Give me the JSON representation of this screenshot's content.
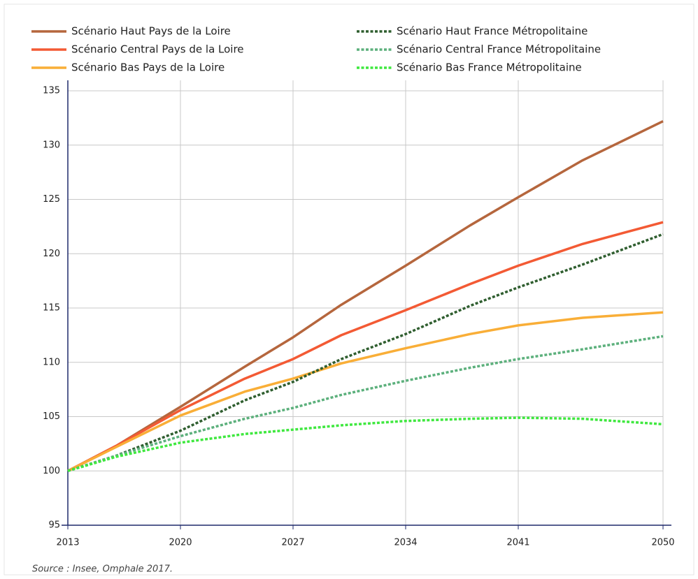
{
  "chart_data": {
    "type": "line",
    "source": "Source : Insee, Omphale 2017.",
    "x": [
      2013,
      2016,
      2020,
      2024,
      2027,
      2030,
      2034,
      2038,
      2041,
      2045,
      2050
    ],
    "series": [
      {
        "name": "Scénario Haut Pays de la Loire",
        "color": "#b5663d",
        "dash": "solid",
        "values": [
          100,
          102.3,
          105.9,
          109.6,
          112.3,
          115.3,
          118.9,
          122.6,
          125.2,
          128.6,
          132.2
        ]
      },
      {
        "name": "Scénario Central Pays de la Loire",
        "color": "#f35a34",
        "dash": "solid",
        "values": [
          100,
          102.3,
          105.6,
          108.5,
          110.3,
          112.5,
          114.8,
          117.2,
          118.9,
          120.9,
          122.9
        ]
      },
      {
        "name": "Scénario Bas Pays de la Loire",
        "color": "#f9ae37",
        "dash": "solid",
        "values": [
          100,
          102.2,
          105.1,
          107.3,
          108.5,
          109.9,
          111.3,
          112.6,
          113.4,
          114.1,
          114.6
        ]
      },
      {
        "name": "Scénario Haut France Métropolitaine",
        "color": "#2f5e2f",
        "dash": "dotted",
        "values": [
          100,
          101.4,
          103.7,
          106.5,
          108.2,
          110.3,
          112.6,
          115.2,
          116.9,
          119.0,
          121.8
        ]
      },
      {
        "name": "Scénario Central France Métropolitaine",
        "color": "#5cb07c",
        "dash": "dotted",
        "values": [
          100,
          101.4,
          103.2,
          104.8,
          105.8,
          107.0,
          108.3,
          109.5,
          110.3,
          111.2,
          112.4
        ]
      },
      {
        "name": "Scénario Bas France Métropolitaine",
        "color": "#3fe83f",
        "dash": "dotted",
        "values": [
          100,
          101.3,
          102.6,
          103.4,
          103.8,
          104.2,
          104.6,
          104.8,
          104.9,
          104.8,
          104.3
        ]
      }
    ],
    "xlim": [
      2013,
      2050
    ],
    "xticks": [
      2013,
      2020,
      2027,
      2034,
      2041,
      2050
    ],
    "ylim": [
      95,
      135
    ],
    "yticks": [
      95,
      100,
      105,
      110,
      115,
      120,
      125,
      130,
      135
    ],
    "grid": true
  }
}
